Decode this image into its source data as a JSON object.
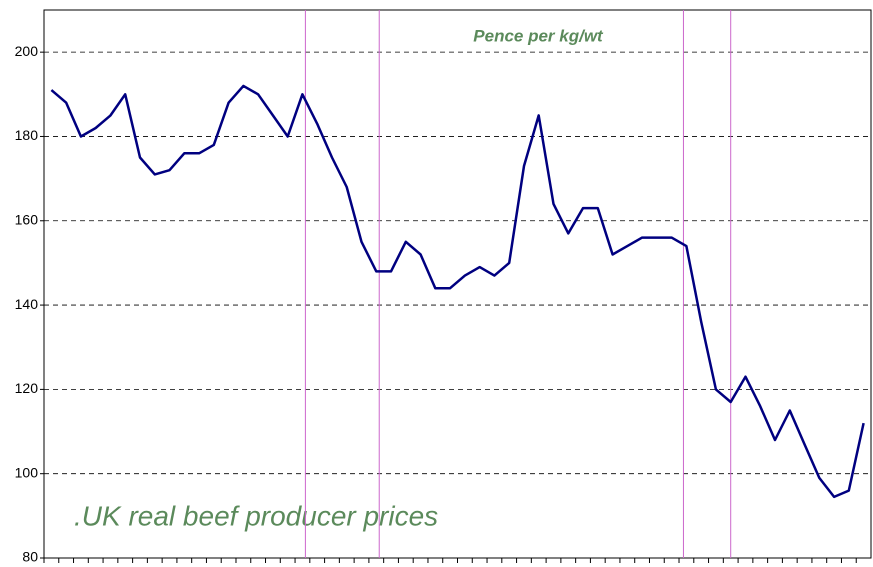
{
  "chart_data": {
    "type": "line",
    "title": "Pence per kg/wt",
    "annotation": ".UK real beef producer prices",
    "series": [
      {
        "color": "#000080",
        "values": [
          191,
          188,
          180,
          182,
          185,
          190,
          175,
          171,
          172,
          176,
          176,
          178,
          188,
          192,
          190,
          185,
          180,
          190,
          183,
          175,
          168,
          155,
          148,
          148,
          155,
          152,
          144,
          144,
          147,
          149,
          147,
          150,
          173,
          185,
          164,
          157,
          163,
          163,
          152,
          154,
          156,
          156,
          156,
          154,
          136,
          120,
          117,
          123,
          116,
          108,
          115,
          107,
          99,
          94.5,
          96,
          112
        ]
      }
    ],
    "ylim": [
      80,
      210
    ],
    "yticks": [
      80,
      100,
      120,
      140,
      160,
      180,
      200
    ],
    "grid": true,
    "vlines": [
      17.2,
      22.2,
      42.8,
      46
    ],
    "vline_color": "#cc66cc"
  }
}
